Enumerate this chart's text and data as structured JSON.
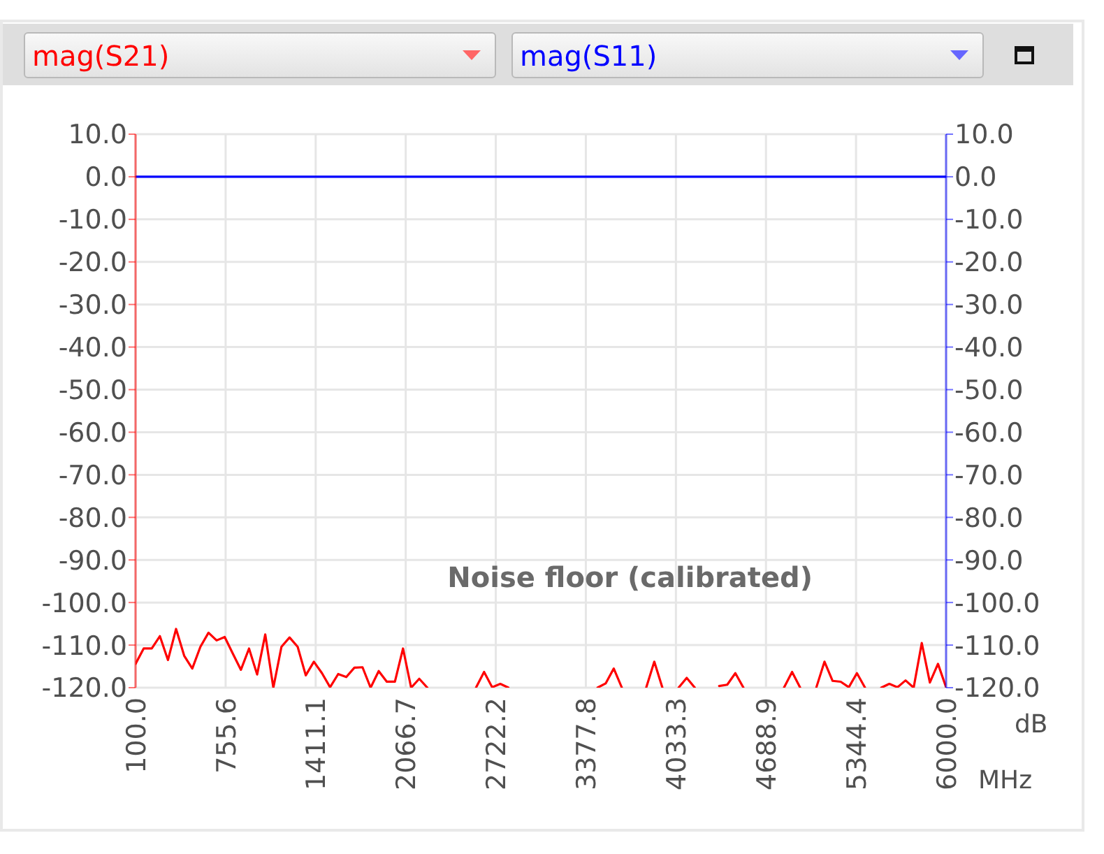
{
  "chart_data": {
    "type": "line",
    "xlabel": "MHz",
    "y2label": "dB",
    "annotations": [
      "Noise floor (calibrated)"
    ],
    "x": [
      100,
      159,
      218,
      277,
      336,
      395,
      454,
      513,
      572,
      631,
      690,
      749,
      808,
      867,
      926,
      985,
      1044,
      1103,
      1162,
      1221,
      1280,
      1339,
      1398,
      1457,
      1516,
      1575,
      1634,
      1693,
      1752,
      1811,
      1870,
      1929,
      1988,
      2047,
      2106,
      2165,
      2224,
      2283,
      2342,
      2401,
      2460,
      2519,
      2578,
      2637,
      2696,
      2755,
      2814,
      2873,
      2932,
      2991,
      3050,
      3109,
      3168,
      3227,
      3286,
      3345,
      3404,
      3463,
      3522,
      3581,
      3640,
      3699,
      3758,
      3817,
      3876,
      3935,
      3994,
      4053,
      4112,
      4171,
      4230,
      4289,
      4348,
      4407,
      4466,
      4525,
      4584,
      4643,
      4702,
      4761,
      4820,
      4879,
      4938,
      4997,
      5056,
      5115,
      5174,
      5233,
      5292,
      5351,
      5410,
      5469,
      5528,
      5587,
      5646,
      5705,
      5764,
      5823,
      5882,
      5941,
      6000
    ],
    "xlim": [
      100,
      6000
    ],
    "xticks": [
      {
        "value": 100,
        "label": "100.0"
      },
      755.6,
      1411.1,
      2066.7,
      2722.2,
      3377.8,
      4033.3,
      4688.9,
      5344.4,
      {
        "value": 6000,
        "label": "6000.0"
      }
    ],
    "ylim": [
      -120,
      10
    ],
    "yticks": [
      {
        "value": 10,
        "label": "10.0"
      },
      {
        "value": 0,
        "label": "0.0"
      },
      {
        "value": -10,
        "label": "-10.0"
      },
      {
        "value": -20,
        "label": "-20.0"
      },
      {
        "value": -30,
        "label": "-30.0"
      },
      {
        "value": -40,
        "label": "-40.0"
      },
      {
        "value": -50,
        "label": "-50.0"
      },
      {
        "value": -60,
        "label": "-60.0"
      },
      {
        "value": -70,
        "label": "-70.0"
      },
      {
        "value": -80,
        "label": "-80.0"
      },
      {
        "value": -90,
        "label": "-90.0"
      },
      {
        "value": -100,
        "label": "-100.0"
      },
      {
        "value": -110,
        "label": "-110.0"
      },
      {
        "value": -120,
        "label": "-120.0"
      }
    ],
    "y2lim": [
      -120,
      10
    ],
    "y2ticks": [
      {
        "value": 10,
        "label": "10.0"
      },
      {
        "value": 0,
        "label": "0.0"
      },
      {
        "value": -10,
        "label": "-10.0"
      },
      {
        "value": -20,
        "label": "-20.0"
      },
      {
        "value": -30,
        "label": "-30.0"
      },
      {
        "value": -40,
        "label": "-40.0"
      },
      {
        "value": -50,
        "label": "-50.0"
      },
      {
        "value": -60,
        "label": "-60.0"
      },
      {
        "value": -70,
        "label": "-70.0"
      },
      {
        "value": -80,
        "label": "-80.0"
      },
      {
        "value": -90,
        "label": "-90.0"
      },
      {
        "value": -100,
        "label": "-100.0"
      },
      {
        "value": -110,
        "label": "-110.0"
      },
      {
        "value": -120,
        "label": "-120.0"
      }
    ],
    "grid": true,
    "legend": "top",
    "series": [
      {
        "name": "mag(S21)",
        "color": "#ff0000",
        "values": [
          -114.4,
          -110.8,
          -110.8,
          -107.9,
          -113.5,
          -106.2,
          -112.5,
          -115.5,
          -110.4,
          -107.1,
          -108.9,
          -108.1,
          -112.0,
          -115.8,
          -110.8,
          -116.9,
          -107.5,
          -120,
          -110.4,
          -108.2,
          -110.4,
          -117.1,
          -113.9,
          -116.6,
          -119.9,
          -116.8,
          -117.5,
          -115.3,
          -115.2,
          -120,
          -116.1,
          -118.6,
          -118.6,
          -110.8,
          -120,
          -117.9,
          -120,
          null,
          null,
          null,
          null,
          null,
          -120,
          -116.3,
          -119.9,
          -119.1,
          -120,
          null,
          null,
          null,
          null,
          null,
          null,
          null,
          null,
          null,
          null,
          -120,
          -119,
          -115.5,
          -120,
          null,
          null,
          -120,
          -113.9,
          -120,
          null,
          -120,
          -117.7,
          -120,
          null,
          null,
          -119.6,
          -119.3,
          -116.6,
          -120,
          null,
          null,
          null,
          null,
          -120,
          -116.3,
          -120,
          null,
          -119.9,
          -113.9,
          -118.4,
          -118.6,
          -119.9,
          -116.6,
          -120,
          null,
          -120,
          -119.1,
          -119.9,
          -118.3,
          -120,
          -109.5,
          -118.8,
          -114.4,
          -119.9
        ]
      },
      {
        "name": "mag(S11)",
        "color": "#0000ff",
        "axis": "y2",
        "x": [
          100,
          6000
        ],
        "values": [
          0,
          0
        ]
      }
    ]
  }
}
